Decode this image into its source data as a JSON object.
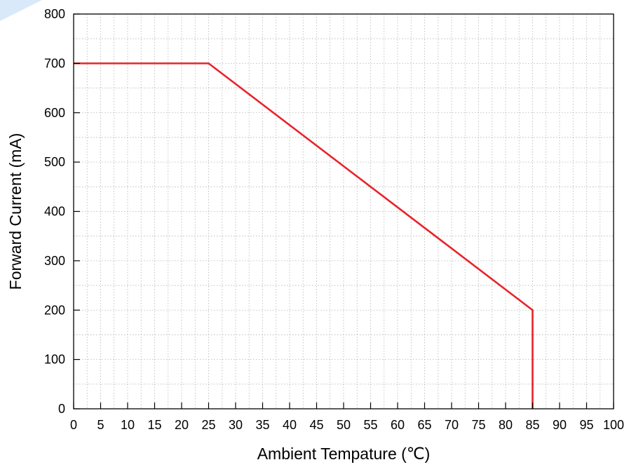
{
  "chart_data": {
    "type": "line",
    "title": "",
    "xlabel": "Ambient Tempature (℃)",
    "ylabel": "Forward Current (mA)",
    "xlim": [
      0,
      100
    ],
    "ylim": [
      0,
      800
    ],
    "x_ticks": [
      0,
      5,
      10,
      15,
      20,
      25,
      30,
      35,
      40,
      45,
      50,
      55,
      60,
      65,
      70,
      75,
      80,
      85,
      90,
      95,
      100
    ],
    "y_ticks": [
      0,
      100,
      200,
      300,
      400,
      500,
      600,
      700,
      800
    ],
    "grid": true,
    "series": [
      {
        "color": "#e8242a",
        "x": [
          0,
          25,
          85,
          85
        ],
        "y": [
          700,
          700,
          200,
          0
        ]
      }
    ]
  }
}
